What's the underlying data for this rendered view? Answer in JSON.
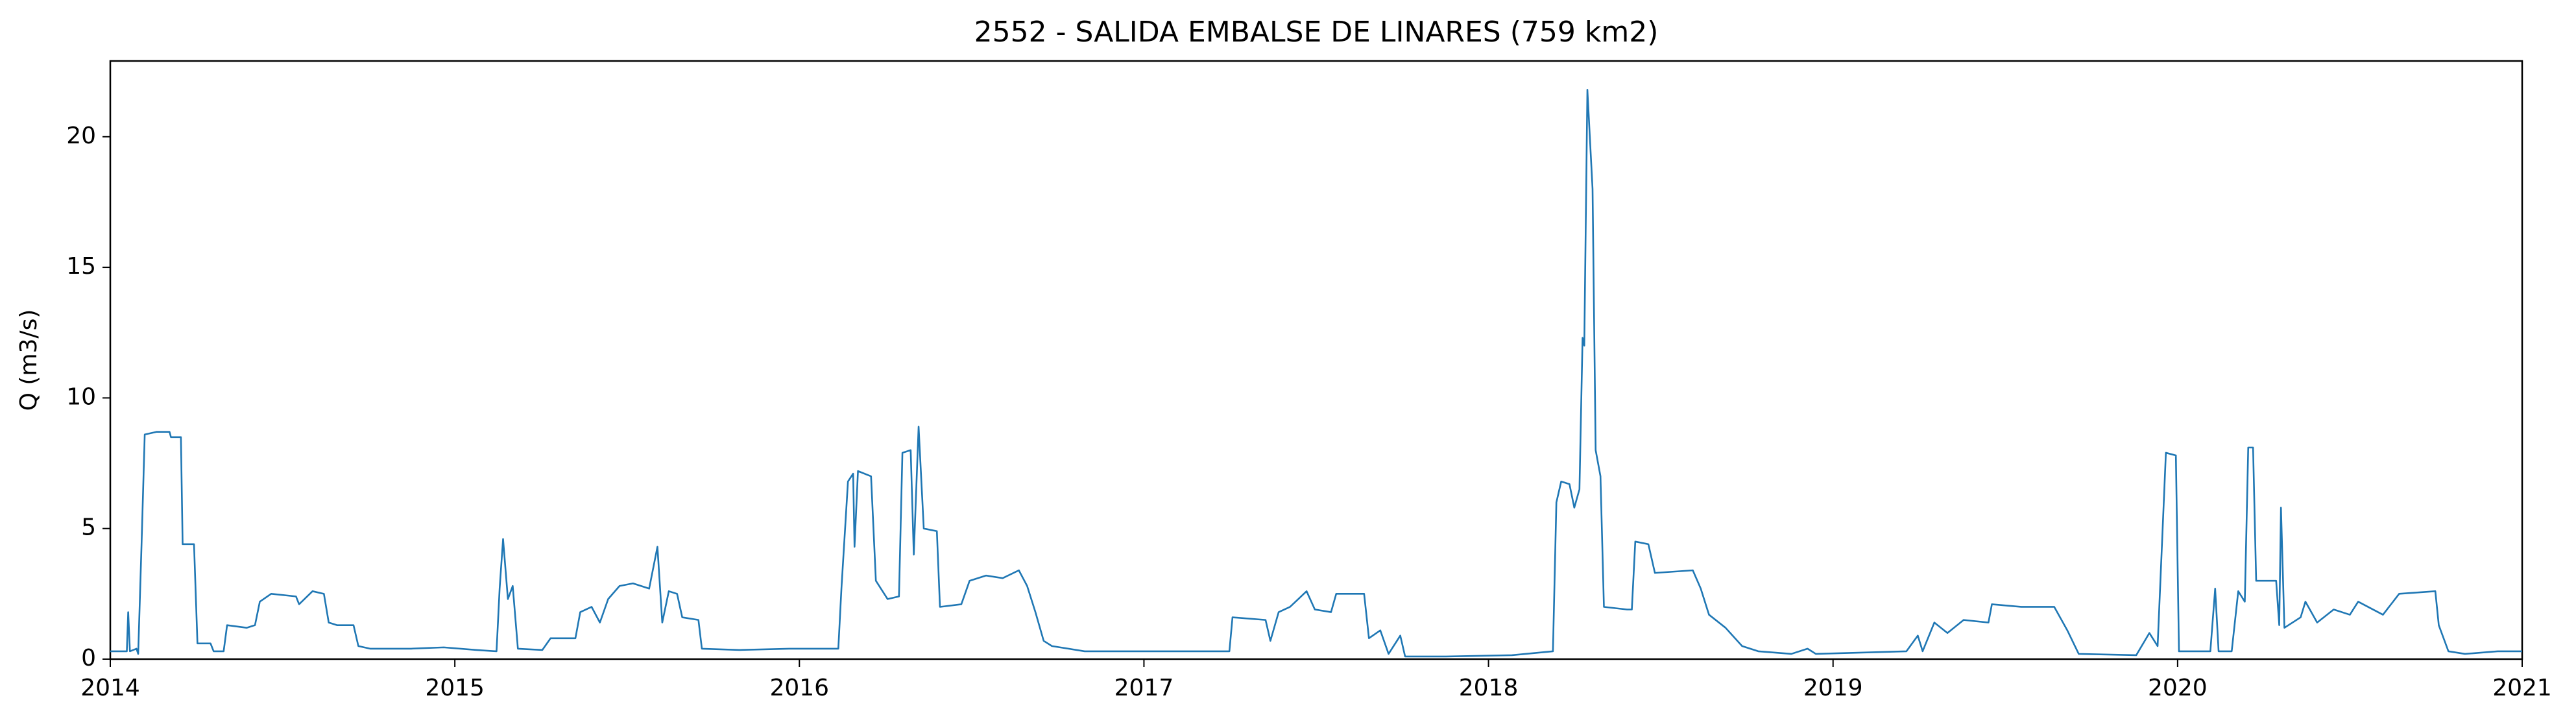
{
  "chart_data": {
    "type": "line",
    "title": "2552 - SALIDA EMBALSE DE LINARES (759 km2)",
    "ylabel": "Q (m3/s)",
    "xlim": [
      2014,
      2021
    ],
    "xticks": [
      2014,
      2015,
      2016,
      2017,
      2018,
      2019,
      2020,
      2021
    ],
    "ylim": [
      0,
      22.9
    ],
    "yticks": [
      0,
      5,
      10,
      15,
      20
    ],
    "grid": false,
    "series": [
      {
        "name": "Q",
        "color": "#1f77b4",
        "x": [
          2014.0,
          2014.048,
          2014.052,
          2014.057,
          2014.076,
          2014.081,
          2014.091,
          2014.1,
          2014.134,
          2014.172,
          2014.176,
          2014.205,
          2014.21,
          2014.243,
          2014.253,
          2014.291,
          2014.3,
          2014.329,
          2014.339,
          2014.396,
          2014.42,
          2014.434,
          2014.467,
          2014.539,
          2014.548,
          2014.587,
          2014.62,
          2014.634,
          2014.658,
          2014.706,
          2014.72,
          2014.754,
          2014.873,
          2014.968,
          2015.063,
          2015.121,
          2015.13,
          2015.14,
          2015.154,
          2015.168,
          2015.183,
          2015.254,
          2015.278,
          2015.35,
          2015.364,
          2015.397,
          2015.421,
          2015.445,
          2015.478,
          2015.517,
          2015.564,
          2015.588,
          2015.602,
          2015.621,
          2015.645,
          2015.66,
          2015.707,
          2015.717,
          2015.827,
          2015.97,
          2016.113,
          2016.122,
          2016.141,
          2016.156,
          2016.16,
          2016.17,
          2016.208,
          2016.222,
          2016.256,
          2016.289,
          2016.299,
          2016.323,
          2016.332,
          2016.346,
          2016.361,
          2016.399,
          2016.408,
          2016.47,
          2016.494,
          2016.542,
          2016.59,
          2016.637,
          2016.661,
          2016.685,
          2016.709,
          2016.733,
          2016.828,
          2017.019,
          2017.162,
          2017.248,
          2017.257,
          2017.353,
          2017.367,
          2017.391,
          2017.424,
          2017.448,
          2017.472,
          2017.496,
          2017.543,
          2017.558,
          2017.639,
          2017.653,
          2017.686,
          2017.71,
          2017.744,
          2017.758,
          2017.877,
          2018.068,
          2018.187,
          2018.197,
          2018.211,
          2018.235,
          2018.249,
          2018.264,
          2018.273,
          2018.278,
          2018.287,
          2018.302,
          2018.311,
          2018.325,
          2018.335,
          2018.402,
          2018.416,
          2018.426,
          2018.464,
          2018.483,
          2018.593,
          2018.616,
          2018.64,
          2018.688,
          2018.736,
          2018.783,
          2018.879,
          2018.926,
          2018.95,
          2019.213,
          2019.246,
          2019.26,
          2019.294,
          2019.332,
          2019.379,
          2019.451,
          2019.461,
          2019.546,
          2019.642,
          2019.68,
          2019.713,
          2019.88,
          2019.918,
          2019.942,
          2019.966,
          2019.995,
          2020.004,
          2020.095,
          2020.109,
          2020.119,
          2020.157,
          2020.176,
          2020.195,
          2020.205,
          2020.219,
          2020.228,
          2020.286,
          2020.295,
          2020.3,
          2020.31,
          2020.357,
          2020.371,
          2020.405,
          2020.453,
          2020.5,
          2020.524,
          2020.596,
          2020.643,
          2020.748,
          2020.758,
          2020.786,
          2020.834,
          2020.929,
          2021.0
        ],
        "values": [
          0.3,
          0.3,
          1.8,
          0.3,
          0.4,
          0.2,
          4.5,
          8.6,
          8.7,
          8.7,
          8.5,
          8.5,
          4.4,
          4.4,
          0.6,
          0.6,
          0.3,
          0.3,
          1.3,
          1.2,
          1.3,
          2.2,
          2.5,
          2.4,
          2.1,
          2.6,
          2.5,
          1.4,
          1.3,
          1.3,
          0.5,
          0.4,
          0.4,
          0.45,
          0.35,
          0.3,
          2.7,
          4.6,
          2.3,
          2.8,
          0.4,
          0.35,
          0.8,
          0.8,
          1.8,
          2.0,
          1.4,
          2.3,
          2.8,
          2.9,
          2.7,
          4.3,
          1.4,
          2.6,
          2.5,
          1.6,
          1.5,
          0.4,
          0.35,
          0.4,
          0.4,
          2.7,
          6.8,
          7.1,
          4.3,
          7.2,
          7.0,
          3.0,
          2.3,
          2.4,
          7.9,
          8.0,
          4.0,
          8.9,
          5.0,
          4.9,
          2.0,
          2.1,
          3.0,
          3.2,
          3.1,
          3.4,
          2.8,
          1.8,
          0.7,
          0.5,
          0.3,
          0.3,
          0.3,
          0.3,
          1.6,
          1.5,
          0.7,
          1.8,
          2.0,
          2.3,
          2.6,
          1.9,
          1.8,
          2.5,
          2.5,
          0.8,
          1.1,
          0.2,
          0.9,
          0.1,
          0.1,
          0.15,
          0.3,
          6.0,
          6.8,
          6.7,
          5.8,
          6.5,
          12.3,
          12.0,
          21.8,
          18.0,
          8.0,
          7.0,
          2.0,
          1.9,
          1.9,
          4.5,
          4.4,
          3.3,
          3.4,
          2.7,
          1.7,
          1.2,
          0.5,
          0.3,
          0.2,
          0.4,
          0.2,
          0.3,
          0.9,
          0.3,
          1.4,
          1.0,
          1.5,
          1.4,
          2.1,
          2.0,
          2.0,
          1.1,
          0.2,
          0.15,
          1.0,
          0.5,
          7.9,
          7.8,
          0.3,
          0.3,
          2.7,
          0.3,
          0.3,
          2.6,
          2.2,
          8.1,
          8.1,
          3.0,
          3.0,
          1.3,
          5.8,
          1.2,
          1.6,
          2.2,
          1.4,
          1.9,
          1.7,
          2.2,
          1.7,
          2.5,
          2.6,
          1.3,
          0.3,
          0.2,
          0.3,
          0.3
        ]
      }
    ]
  }
}
